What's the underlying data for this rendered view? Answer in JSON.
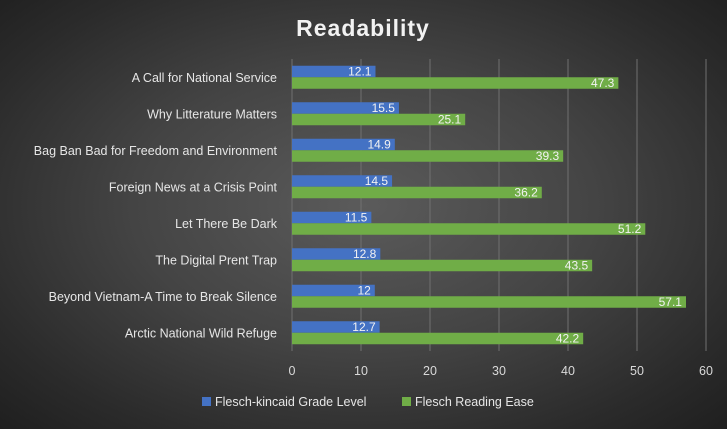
{
  "chart_data": {
    "type": "bar",
    "orientation": "horizontal",
    "title": "Readability",
    "xlabel": "",
    "ylabel": "",
    "xlim": [
      0,
      60
    ],
    "x_ticks": [
      0,
      10,
      20,
      30,
      40,
      50,
      60
    ],
    "grid": true,
    "legend_position": "bottom",
    "categories": [
      "Arctic National Wild Refuge",
      "Beyond Vietnam-A Time to Break Silence",
      "The Digital Prent Trap",
      "Let There Be Dark",
      "Foreign News at a Crisis Point",
      "Bag Ban Bad for Freedom and Environment",
      "Why Litterature Matters",
      "A Call for National Service"
    ],
    "series": [
      {
        "name": "Flesch-kincaid Grade Level",
        "color": "#4472C4",
        "values": [
          12.7,
          12,
          12.8,
          11.5,
          14.5,
          14.9,
          15.5,
          12.1
        ]
      },
      {
        "name": "Flesch Reading Ease",
        "color": "#70AD47",
        "values": [
          42.2,
          57.1,
          43.5,
          51.2,
          36.2,
          39.3,
          25.1,
          47.3
        ]
      }
    ]
  }
}
